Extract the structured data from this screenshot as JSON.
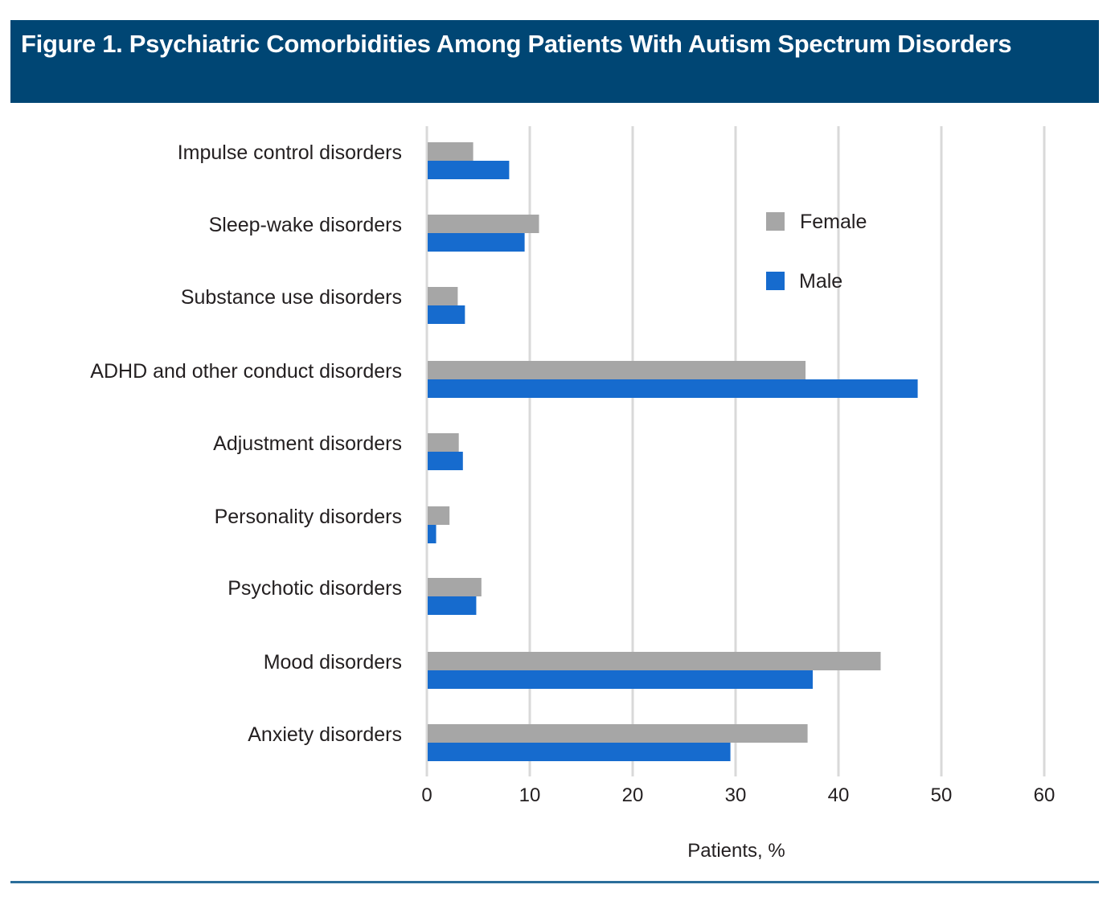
{
  "header": {
    "title": "Figure 1. Psychiatric Comorbidities Among Patients With Autism Spectrum Disorders"
  },
  "colors": {
    "title_bg": "#004674",
    "female": "#a6a6a6",
    "male": "#166bce",
    "grid": "#d9d9d9",
    "rule": "#2b6e9b"
  },
  "chart_data": {
    "type": "bar",
    "orientation": "horizontal",
    "title": "Figure 1. Psychiatric Comorbidities Among Patients With Autism Spectrum Disorders",
    "xlabel": "Patients, %",
    "ylabel": "",
    "xlim": [
      0,
      60
    ],
    "xticks": [
      0,
      10,
      20,
      30,
      40,
      50,
      60
    ],
    "grid": true,
    "legend_position": "top-right",
    "categories": [
      "Impulse control disorders",
      "Sleep-wake disorders",
      "Substance use disorders",
      "ADHD and other conduct disorders",
      "Adjustment disorders",
      "Personality disorders",
      "Psychotic disorders",
      "Mood disorders",
      "Anxiety disorders"
    ],
    "series": [
      {
        "name": "Female",
        "color": "#a6a6a6",
        "values": [
          4.5,
          10.9,
          3.0,
          36.8,
          3.1,
          2.2,
          5.3,
          44.1,
          37.0
        ]
      },
      {
        "name": "Male",
        "color": "#166bce",
        "values": [
          8.0,
          9.5,
          3.7,
          47.7,
          3.5,
          0.9,
          4.8,
          37.5,
          29.5
        ]
      }
    ]
  }
}
